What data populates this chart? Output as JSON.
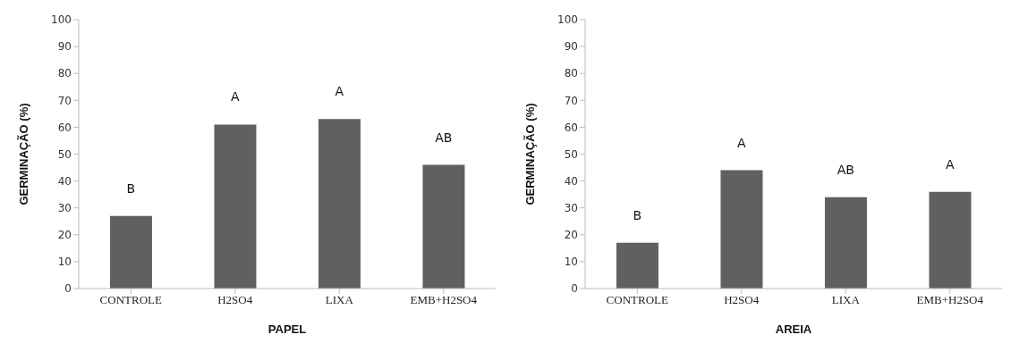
{
  "chart_data": [
    {
      "type": "bar",
      "xlabel": "PAPEL",
      "ylabel": "GERMINAÇÃO (%)",
      "categories": [
        "CONTROLE",
        "H2SO4",
        "LIXA",
        "EMB+H2SO4"
      ],
      "values": [
        27,
        61,
        63,
        46
      ],
      "color": "#606060",
      "ylim": [
        0,
        100
      ],
      "yticks": [
        0,
        10,
        20,
        30,
        40,
        50,
        60,
        70,
        80,
        90,
        100
      ],
      "grid": false,
      "legend": false,
      "annotations": [
        {
          "text": "B",
          "x": "CONTROLE",
          "y": 27
        },
        {
          "text": "A",
          "x": "H2SO4",
          "y": 61
        },
        {
          "text": "A",
          "x": "LIXA",
          "y": 63
        },
        {
          "text": "AB",
          "x": "EMB+H2SO4",
          "y": 46
        }
      ]
    },
    {
      "type": "bar",
      "xlabel": "AREIA",
      "ylabel": "GERMINAÇÃO (%)",
      "categories": [
        "CONTROLE",
        "H2SO4",
        "LIXA",
        "EMB+H2SO4"
      ],
      "values": [
        17,
        44,
        34,
        36
      ],
      "color": "#606060",
      "ylim": [
        0,
        100
      ],
      "yticks": [
        0,
        10,
        20,
        30,
        40,
        50,
        60,
        70,
        80,
        90,
        100
      ],
      "grid": false,
      "legend": false,
      "annotations": [
        {
          "text": "B",
          "x": "CONTROLE",
          "y": 17
        },
        {
          "text": "A",
          "x": "H2SO4",
          "y": 44
        },
        {
          "text": "AB",
          "x": "LIXA",
          "y": 34
        },
        {
          "text": "A",
          "x": "EMB+H2SO4",
          "y": 36
        }
      ]
    }
  ]
}
